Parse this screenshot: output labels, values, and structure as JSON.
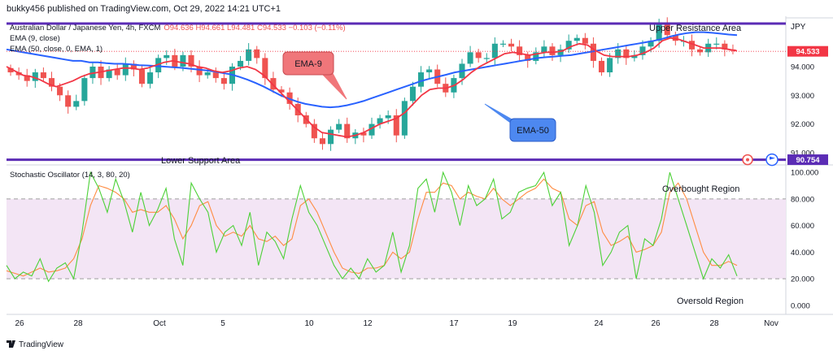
{
  "header": {
    "published": "bukky456 published on TradingView.com, Oct 29, 2022 14:21 UTC+1",
    "symbol": "Australian Dollar / Japanese Yen, 4h, FXCM",
    "ohlc": "O94.636 H94.661 L94.481 C94.533 −0.103 (−0.11%)",
    "ema9_label": "EMA (9, close)",
    "ema50_label": "EMA (50, close, 0, EMA, 1)"
  },
  "currency": "JPY",
  "annotations": {
    "upper_resistance": "Upper Resistance Area",
    "lower_support": "Lower Support Area",
    "ema9_callout": "EMA-9",
    "ema50_callout": "EMA-50",
    "overbought": "Overbought Region",
    "oversold": "Oversold Region"
  },
  "stoch_label": "Stochastic Oscillator (14, 3, 80, 20)",
  "footer_logo": "TradingView",
  "colors": {
    "up": "#26a69a",
    "down": "#ef5350",
    "ema9": "#f23645",
    "ema50": "#2962ff",
    "levels": "#5b2cb5",
    "stoch_k": "#4cd137",
    "stoch_d": "#ff8c42",
    "band": "#f3e5f5"
  },
  "chart_data": [
    {
      "type": "candlestick",
      "x_ticks": [
        "26",
        "28",
        "Oct",
        "5",
        "10",
        "12",
        "17",
        "19",
        "24",
        "26",
        "28",
        "Nov"
      ],
      "y_ticks": [
        "94.000",
        "93.000",
        "92.000",
        "91.000"
      ],
      "ylim": [
        90.6,
        95.7
      ],
      "last_price": "94.533",
      "level_labels": {
        "support": "90.754"
      },
      "levels": {
        "upper_resistance": 95.5,
        "lower_support": 90.754
      },
      "close_path": [
        93.8,
        93.7,
        93.5,
        93.8,
        93.6,
        93.3,
        93.0,
        92.6,
        92.8,
        93.6,
        94.0,
        93.6,
        93.9,
        93.7,
        94.1,
        93.9,
        93.4,
        93.8,
        94.3,
        94.4,
        94.0,
        94.4,
        94.0,
        93.7,
        93.8,
        93.6,
        93.4,
        94.0,
        94.2,
        94.6,
        94.3,
        93.6,
        93.2,
        93.1,
        92.7,
        92.3,
        92.0,
        91.5,
        91.3,
        91.8,
        92.0,
        91.5,
        91.7,
        91.6,
        92.0,
        92.2,
        92.3,
        91.6,
        92.8,
        93.3,
        93.8,
        93.9,
        93.4,
        93.1,
        93.6,
        94.1,
        94.5,
        94.3,
        94.3,
        94.8,
        94.8,
        94.7,
        94.4,
        94.2,
        94.5,
        94.7,
        94.4,
        94.6,
        94.9,
        95.0,
        94.8,
        94.2,
        93.8,
        94.3,
        94.6,
        94.3,
        94.4,
        94.7,
        94.9,
        95.5,
        95.1,
        94.9,
        94.9,
        94.6,
        94.5,
        94.8,
        94.8,
        94.6,
        94.55
      ],
      "ema9_path": [
        94.0,
        93.85,
        93.7,
        93.65,
        93.55,
        93.4,
        93.3,
        93.4,
        93.5,
        93.65,
        93.75,
        93.8,
        93.85,
        93.9,
        93.95,
        93.95,
        93.9,
        93.95,
        94.05,
        94.15,
        94.2,
        94.15,
        94.1,
        94.0,
        93.95,
        93.85,
        93.8,
        93.85,
        93.95,
        94.0,
        93.9,
        93.7,
        93.4,
        93.1,
        92.8,
        92.5,
        92.2,
        91.9,
        91.7,
        91.65,
        91.6,
        91.55,
        91.6,
        91.7,
        91.85,
        92.0,
        92.1,
        92.2,
        92.4,
        92.7,
        93.0,
        93.2,
        93.25,
        93.25,
        93.35,
        93.55,
        93.8,
        94.0,
        94.15,
        94.3,
        94.45,
        94.5,
        94.45,
        94.4,
        94.45,
        94.5,
        94.5,
        94.55,
        94.7,
        94.8,
        94.75,
        94.55,
        94.4,
        94.35,
        94.35,
        94.35,
        94.4,
        94.5,
        94.65,
        94.9,
        95.0,
        94.95,
        94.85,
        94.75,
        94.65,
        94.65,
        94.65,
        94.6,
        94.55
      ],
      "ema50_path": [
        94.6,
        94.55,
        94.5,
        94.45,
        94.4,
        94.35,
        94.3,
        94.25,
        94.2,
        94.2,
        94.15,
        94.15,
        94.12,
        94.1,
        94.1,
        94.08,
        94.05,
        94.04,
        94.02,
        94.0,
        93.98,
        93.96,
        93.93,
        93.9,
        93.87,
        93.83,
        93.78,
        93.73,
        93.65,
        93.55,
        93.43,
        93.3,
        93.15,
        93.0,
        92.88,
        92.78,
        92.7,
        92.65,
        92.6,
        92.58,
        92.6,
        92.65,
        92.72,
        92.8,
        92.9,
        93.0,
        93.1,
        93.2,
        93.3,
        93.4,
        93.5,
        93.58,
        93.65,
        93.72,
        93.8,
        93.85,
        93.9,
        93.95,
        94.0,
        94.05,
        94.1,
        94.15,
        94.2,
        94.25,
        94.3,
        94.33,
        94.35,
        94.38,
        94.4,
        94.45,
        94.5,
        94.55,
        94.6,
        94.65,
        94.7,
        94.75,
        94.8,
        94.85,
        94.9,
        94.97,
        95.05,
        95.12,
        95.17,
        95.2,
        95.2,
        95.18,
        95.15,
        95.12,
        95.1
      ]
    },
    {
      "type": "line",
      "title": "Stochastic Oscillator (14, 3, 80, 20)",
      "y_ticks": [
        "100.000",
        "80.000",
        "60.000",
        "40.000",
        "20.000",
        "0.000"
      ],
      "ylim": [
        -5,
        105
      ],
      "bands": {
        "upper": 80,
        "lower": 20
      },
      "series": [
        {
          "values": [
            30,
            20,
            25,
            22,
            35,
            18,
            28,
            32,
            20,
            55,
            100,
            88,
            70,
            95,
            78,
            55,
            85,
            60,
            72,
            88,
            50,
            30,
            92,
            80,
            70,
            40,
            55,
            60,
            45,
            70,
            30,
            55,
            48,
            35,
            65,
            90,
            70,
            60,
            45,
            30,
            20,
            28,
            20,
            35,
            25,
            30,
            55,
            25,
            45,
            88,
            95,
            70,
            100,
            85,
            60,
            90,
            75,
            80,
            95,
            65,
            70,
            85,
            88,
            90,
            100,
            75,
            85,
            45,
            60,
            90,
            70,
            30,
            40,
            55,
            60,
            20,
            50,
            45,
            65,
            100,
            80,
            60,
            40,
            20,
            35,
            28,
            38,
            22
          ]
        },
        {
          "values": [
            26,
            24,
            22,
            25,
            28,
            25,
            26,
            28,
            35,
            50,
            75,
            90,
            88,
            85,
            80,
            70,
            72,
            70,
            70,
            75,
            65,
            50,
            60,
            75,
            78,
            60,
            52,
            55,
            52,
            60,
            50,
            48,
            52,
            45,
            50,
            75,
            80,
            70,
            55,
            40,
            28,
            25,
            24,
            28,
            28,
            30,
            40,
            35,
            40,
            65,
            85,
            85,
            92,
            90,
            80,
            85,
            82,
            80,
            88,
            80,
            75,
            80,
            85,
            88,
            95,
            88,
            85,
            65,
            60,
            75,
            78,
            55,
            45,
            48,
            52,
            40,
            42,
            45,
            55,
            85,
            92,
            80,
            60,
            40,
            30,
            30,
            33,
            30
          ]
        }
      ]
    }
  ]
}
